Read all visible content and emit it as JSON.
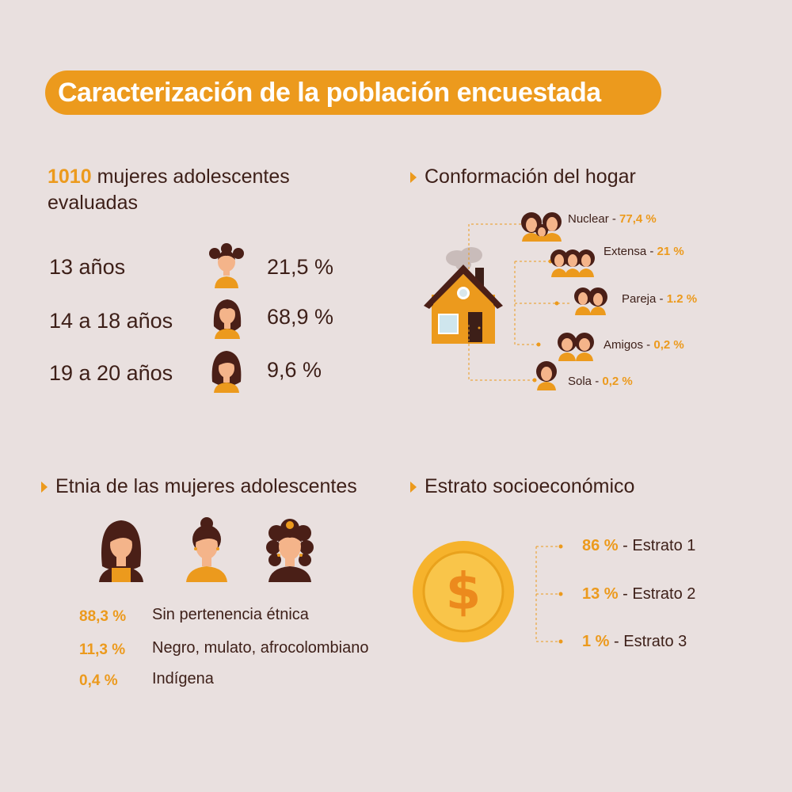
{
  "title": "Caracterización de la población encuestada",
  "intro": {
    "count": "1010",
    "text": " mujeres adolescentes evaluadas"
  },
  "age_groups": [
    {
      "label": "13 años",
      "value": "21,5 %"
    },
    {
      "label": "14 a 18 años",
      "value": "68,9 %"
    },
    {
      "label": "19 a 20 años",
      "value": "9,6 %"
    }
  ],
  "household": {
    "heading": "Conformación del hogar",
    "items": [
      {
        "label": "Nuclear - ",
        "value": "77,4 %"
      },
      {
        "label": "Extensa - ",
        "value": "21 %"
      },
      {
        "label": "Pareja - ",
        "value": "1.2 %"
      },
      {
        "label": "Amigos - ",
        "value": "0,2 %"
      },
      {
        "label": "Sola - ",
        "value": "0,2 %"
      }
    ]
  },
  "ethnicity": {
    "heading": "Etnia de las mujeres adolescentes",
    "items": [
      {
        "value": "88,3 %",
        "label": "Sin pertenencia étnica"
      },
      {
        "value": "11,3 %",
        "label": "Negro, mulato, afrocolombiano"
      },
      {
        "value": "0,4 %",
        "label": "Indígena"
      }
    ]
  },
  "stratum": {
    "heading": "Estrato socioeconómico",
    "items": [
      {
        "value": "86 %",
        "label": " - Estrato 1"
      },
      {
        "value": "13 %",
        "label": " - Estrato 2"
      },
      {
        "value": "1 %",
        "label": " - Estrato 3"
      }
    ]
  },
  "colors": {
    "background": "#e9e0df",
    "accent": "#ec9a1d",
    "text": "#3d1f18",
    "skin": "#f4b48a",
    "hair": "#4a1f17"
  },
  "icons": [
    "girl-pigtails-icon",
    "girl-long-hair-icon",
    "woman-icon",
    "house-icon",
    "family-icon",
    "couple-icon",
    "friends-icon",
    "coin-dollar-icon"
  ]
}
